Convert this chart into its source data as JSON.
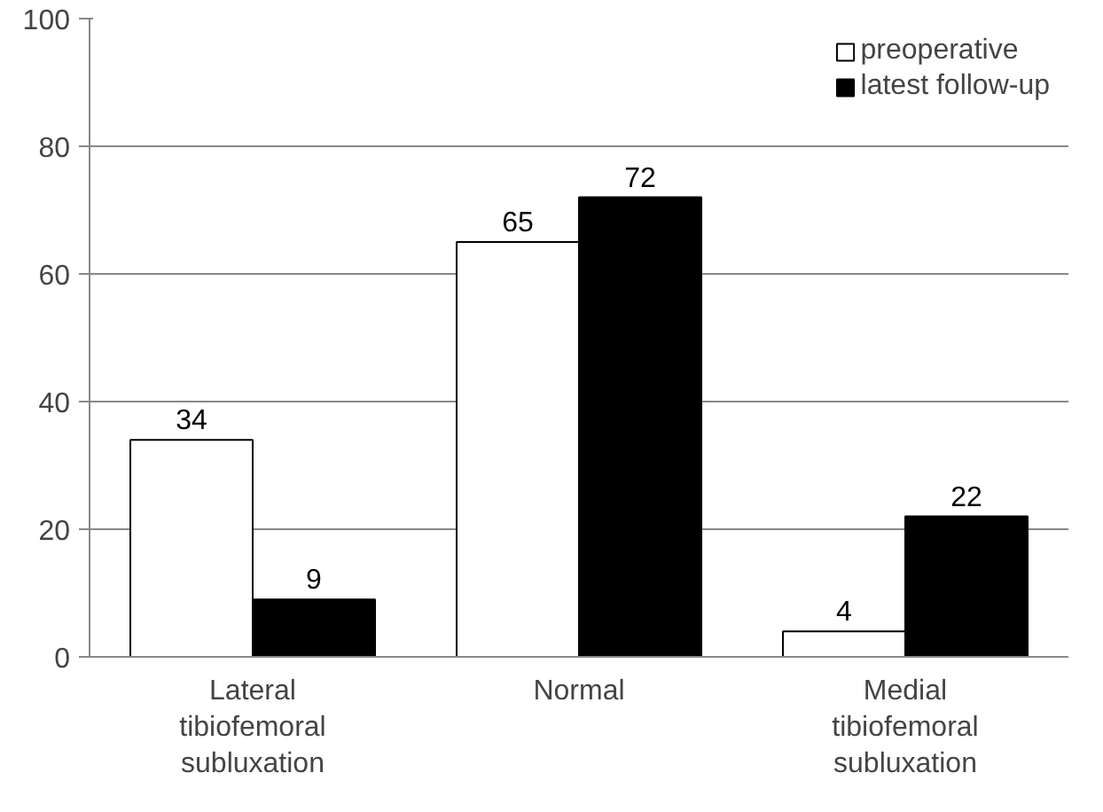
{
  "chart_data": {
    "type": "bar",
    "categories": [
      "Lateral\ntibiofemoral\nsubluxation",
      "Normal",
      "Medial\ntibiofemoral\nsubluxation"
    ],
    "series": [
      {
        "name": "preoperative",
        "color": "#ffffff",
        "values": [
          34,
          65,
          4
        ]
      },
      {
        "name": "latest follow-up",
        "color": "#000000",
        "values": [
          9,
          72,
          22
        ]
      }
    ],
    "ylim": [
      0,
      100
    ],
    "yticks": [
      0,
      20,
      40,
      60,
      80,
      100
    ],
    "grid": "y",
    "legend": "top right",
    "data_labels": true
  }
}
